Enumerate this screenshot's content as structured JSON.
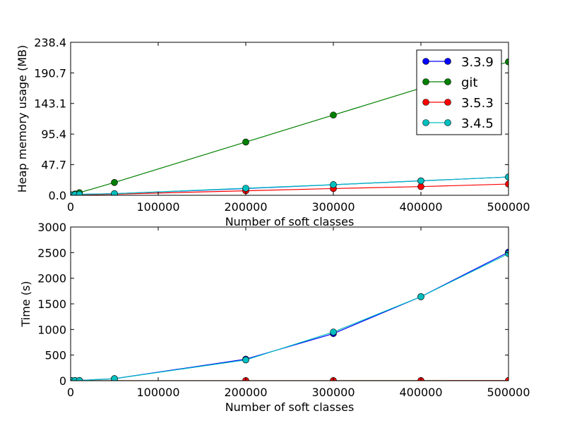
{
  "chart_data": [
    {
      "type": "line",
      "title": "",
      "xlabel": "Number of soft classes",
      "ylabel": "Heap memory usage (MB)",
      "xlim": [
        0,
        500000
      ],
      "ylim": [
        0,
        238.4
      ],
      "xticks": [
        0,
        100000,
        200000,
        300000,
        400000,
        500000
      ],
      "xtick_labels": [
        "0",
        "100000",
        "200000",
        "300000",
        "400000",
        "500000"
      ],
      "yticks": [
        0,
        47.7,
        95.4,
        143.1,
        190.7,
        238.4
      ],
      "ytick_labels": [
        "0.0",
        "47.7",
        "95.4",
        "143.1",
        "190.7",
        "238.4"
      ],
      "grid": false,
      "legend": "top-right",
      "series": [
        {
          "name": "3.3.9",
          "color": "#0000ff",
          "x": [
            0,
            1000,
            5000,
            10000,
            50000,
            200000,
            300000,
            400000,
            500000
          ],
          "values": [
            0.2,
            0.4,
            1.0,
            1.5,
            2.5,
            10.5,
            16.5,
            22.5,
            28.5
          ]
        },
        {
          "name": "git",
          "color": "#008000",
          "x": [
            0,
            1000,
            5000,
            10000,
            50000,
            200000,
            300000,
            400000,
            500000
          ],
          "values": [
            0.3,
            0.6,
            2.0,
            4.0,
            20.0,
            83.0,
            125.0,
            167.0,
            208.0
          ]
        },
        {
          "name": "3.5.3",
          "color": "#ff0000",
          "x": [
            0,
            1000,
            5000,
            10000,
            50000,
            200000,
            300000,
            400000,
            500000
          ],
          "values": [
            0.1,
            0.2,
            0.4,
            0.6,
            1.8,
            7.0,
            10.5,
            13.5,
            17.5
          ]
        },
        {
          "name": "3.4.5",
          "color": "#00bfbf",
          "x": [
            0,
            1000,
            5000,
            10000,
            50000,
            200000,
            300000,
            400000,
            500000
          ],
          "values": [
            0.2,
            0.4,
            1.0,
            1.5,
            2.5,
            11.0,
            16.5,
            22.5,
            28.5
          ]
        }
      ]
    },
    {
      "type": "line",
      "title": "",
      "xlabel": "Number of soft classes",
      "ylabel": "Time (s)",
      "xlim": [
        0,
        500000
      ],
      "ylim": [
        0,
        3000
      ],
      "xticks": [
        0,
        100000,
        200000,
        300000,
        400000,
        500000
      ],
      "xtick_labels": [
        "0",
        "100000",
        "200000",
        "300000",
        "400000",
        "500000"
      ],
      "yticks": [
        0,
        500,
        1000,
        1500,
        2000,
        2500,
        3000
      ],
      "ytick_labels": [
        "0",
        "500",
        "1000",
        "1500",
        "2000",
        "2500",
        "3000"
      ],
      "grid": false,
      "series": [
        {
          "name": "3.3.9",
          "color": "#0000ff",
          "x": [
            0,
            1000,
            5000,
            10000,
            50000,
            200000,
            300000,
            400000,
            500000
          ],
          "values": [
            0,
            1,
            3,
            5,
            40,
            420,
            920,
            1640,
            2510
          ]
        },
        {
          "name": "git",
          "color": "#008000",
          "x": [
            0,
            1000,
            5000,
            10000,
            50000,
            200000,
            300000,
            400000,
            500000
          ],
          "values": [
            0,
            0,
            0,
            0,
            0,
            1,
            1,
            2,
            2
          ]
        },
        {
          "name": "3.5.3",
          "color": "#ff0000",
          "x": [
            0,
            1000,
            5000,
            10000,
            50000,
            200000,
            300000,
            400000,
            500000
          ],
          "values": [
            0,
            0,
            0,
            0,
            0,
            1,
            1,
            1,
            2
          ]
        },
        {
          "name": "3.4.5",
          "color": "#00bfbf",
          "x": [
            0,
            1000,
            5000,
            10000,
            50000,
            200000,
            300000,
            400000,
            500000
          ],
          "values": [
            0,
            1,
            3,
            5,
            40,
            405,
            950,
            1640,
            2480
          ]
        }
      ]
    }
  ]
}
